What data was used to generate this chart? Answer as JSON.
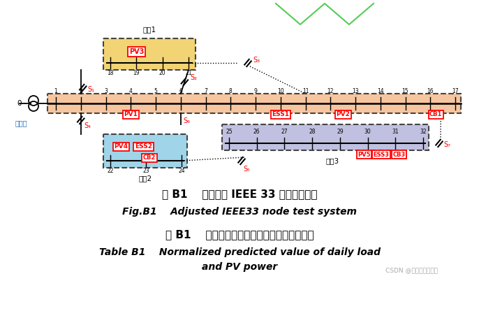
{
  "title_zh": "图 B1    调整后的 IEEE 33 节点测试系统",
  "title_en": "Fig.B1    Adjusted IEEE33 node test system",
  "subtitle_zh": "表 B1    归一化日负荷及光伏出力功率预测数据",
  "subtitle_en1": "Table B1    Normalized predicted value of daily load",
  "subtitle_en2": "and PV power",
  "watermark": "CSDN @电网论文源程序",
  "bg_color": "#ffffff",
  "main_bus_color": "#f5c6a0",
  "branch1_color": "#f2d474",
  "branch2_color": "#a0d4e8",
  "branch3_color": "#c0c0e0",
  "dashed_border_color": "#444444",
  "line_color": "#000000",
  "green_color": "#55cc55",
  "caption_color": "#111111"
}
